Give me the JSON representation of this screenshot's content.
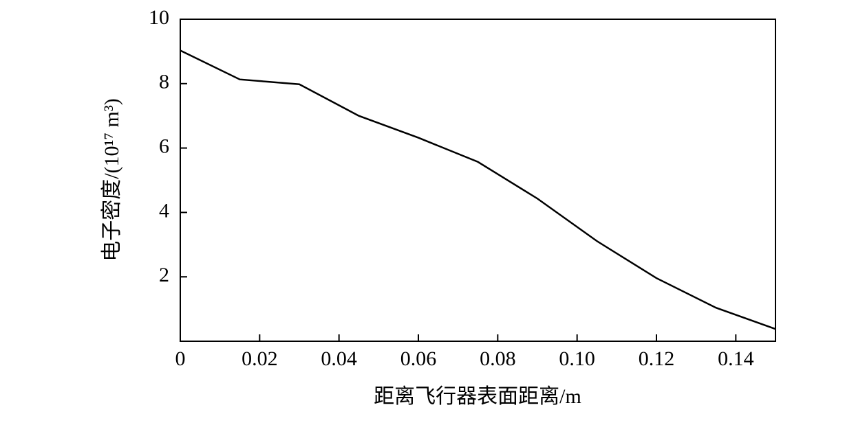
{
  "chart_data": {
    "type": "line",
    "x_label": "距离飞行器表面距离/m",
    "y_label": "电子密度/(10¹⁷ m³)",
    "x": [
      0,
      0.015,
      0.03,
      0.045,
      0.06,
      0.075,
      0.09,
      0.105,
      0.12,
      0.135,
      0.15
    ],
    "series": [
      {
        "name": "电子密度",
        "color": "#000000",
        "values": [
          9.03,
          8.13,
          7.98,
          7.0,
          6.32,
          5.57,
          4.43,
          3.11,
          1.96,
          1.04,
          0.38
        ]
      }
    ],
    "xlim": [
      0,
      0.15
    ],
    "ylim": [
      0,
      10
    ],
    "xticks": [
      0,
      0.02,
      0.04,
      0.06,
      0.08,
      {
        "value": 0.1,
        "label": "0.10"
      },
      0.12,
      0.14
    ],
    "yticks": [
      2,
      4,
      6,
      8,
      10
    ],
    "grid": false
  }
}
